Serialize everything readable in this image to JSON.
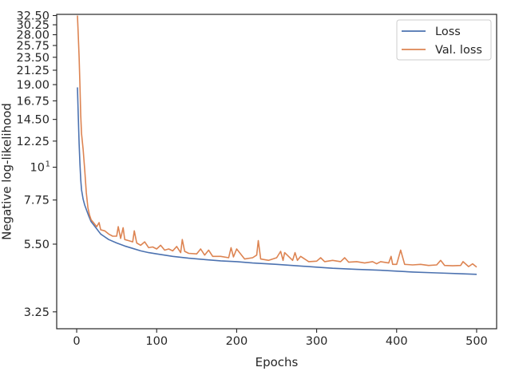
{
  "chart_data": {
    "type": "line",
    "title": "",
    "xlabel": "Epochs",
    "ylabel": "Negative log-likelihood",
    "y_scale": "log",
    "xlim": [
      -25,
      525
    ],
    "ylim": [
      2.85,
      32.8
    ],
    "x_ticks": [
      0,
      100,
      200,
      300,
      400,
      500
    ],
    "x_tick_labels": [
      "0",
      "100",
      "200",
      "300",
      "400",
      "500"
    ],
    "y_ticks": [
      3.25,
      5.5,
      7.75,
      10,
      12.25,
      14.5,
      16.75,
      19.0,
      21.25,
      23.5,
      25.75,
      28.0,
      30.25,
      32.5
    ],
    "y_tick_labels": [
      "3.25",
      "5.50",
      "7.75",
      "10",
      "12.25",
      "14.50",
      "16.75",
      "19.00",
      "21.25",
      "23.50",
      "25.75",
      "28.00",
      "30.25",
      "32.50"
    ],
    "y_tick_superscripts": [
      "",
      "",
      "",
      "1",
      "",
      "",
      "",
      "",
      "",
      "",
      "",
      "",
      "",
      ""
    ],
    "grid": false,
    "legend_position": "top-right",
    "series": [
      {
        "name": "Loss",
        "color": "#4c72b0",
        "x": [
          1,
          2,
          3,
          4,
          5,
          6,
          8,
          10,
          12,
          15,
          18,
          20,
          25,
          30,
          40,
          50,
          60,
          70,
          80,
          90,
          100,
          120,
          140,
          160,
          180,
          200,
          220,
          250,
          280,
          300,
          320,
          350,
          380,
          400,
          420,
          450,
          480,
          500
        ],
        "y": [
          18.6,
          15.0,
          12.0,
          10.3,
          9.1,
          8.4,
          7.8,
          7.45,
          7.2,
          6.85,
          6.55,
          6.45,
          6.2,
          5.95,
          5.7,
          5.55,
          5.42,
          5.32,
          5.22,
          5.15,
          5.1,
          5.0,
          4.93,
          4.88,
          4.83,
          4.8,
          4.75,
          4.7,
          4.64,
          4.6,
          4.56,
          4.52,
          4.49,
          4.46,
          4.43,
          4.4,
          4.37,
          4.35
        ]
      },
      {
        "name": "Val. loss",
        "color": "#dd8452",
        "x": [
          1,
          2,
          3,
          4,
          5,
          6,
          8,
          10,
          12,
          14,
          16,
          18,
          20,
          22,
          25,
          28,
          30,
          35,
          40,
          45,
          50,
          52,
          55,
          58,
          60,
          65,
          70,
          72,
          75,
          80,
          85,
          90,
          95,
          100,
          105,
          110,
          115,
          120,
          125,
          130,
          132,
          135,
          140,
          150,
          155,
          160,
          165,
          170,
          180,
          190,
          193,
          196,
          200,
          210,
          220,
          225,
          227,
          230,
          240,
          250,
          255,
          258,
          260,
          270,
          273,
          276,
          280,
          290,
          300,
          305,
          310,
          320,
          330,
          335,
          340,
          350,
          360,
          370,
          375,
          380,
          390,
          393,
          395,
          400,
          405,
          410,
          420,
          430,
          440,
          450,
          455,
          460,
          470,
          480,
          483,
          490,
          495,
          500
        ],
        "y": [
          32.5,
          28.0,
          23.5,
          19.0,
          15.0,
          13.0,
          11.5,
          9.8,
          8.2,
          7.3,
          6.9,
          6.65,
          6.55,
          6.45,
          6.3,
          6.5,
          6.15,
          6.1,
          5.95,
          5.85,
          5.85,
          6.3,
          5.75,
          6.25,
          5.7,
          5.65,
          5.6,
          6.1,
          5.55,
          5.45,
          5.6,
          5.35,
          5.38,
          5.3,
          5.45,
          5.25,
          5.3,
          5.22,
          5.4,
          5.15,
          5.7,
          5.2,
          5.12,
          5.1,
          5.3,
          5.05,
          5.25,
          5.0,
          5.0,
          4.95,
          5.35,
          4.98,
          5.3,
          4.9,
          4.95,
          5.05,
          5.65,
          4.9,
          4.85,
          4.95,
          5.2,
          4.85,
          5.15,
          4.85,
          5.15,
          4.85,
          5.0,
          4.8,
          4.82,
          4.95,
          4.8,
          4.85,
          4.8,
          4.95,
          4.78,
          4.8,
          4.75,
          4.8,
          4.72,
          4.8,
          4.75,
          5.0,
          4.7,
          4.7,
          5.25,
          4.7,
          4.68,
          4.7,
          4.66,
          4.68,
          4.85,
          4.66,
          4.65,
          4.66,
          4.8,
          4.62,
          4.72,
          4.6
        ]
      }
    ]
  }
}
